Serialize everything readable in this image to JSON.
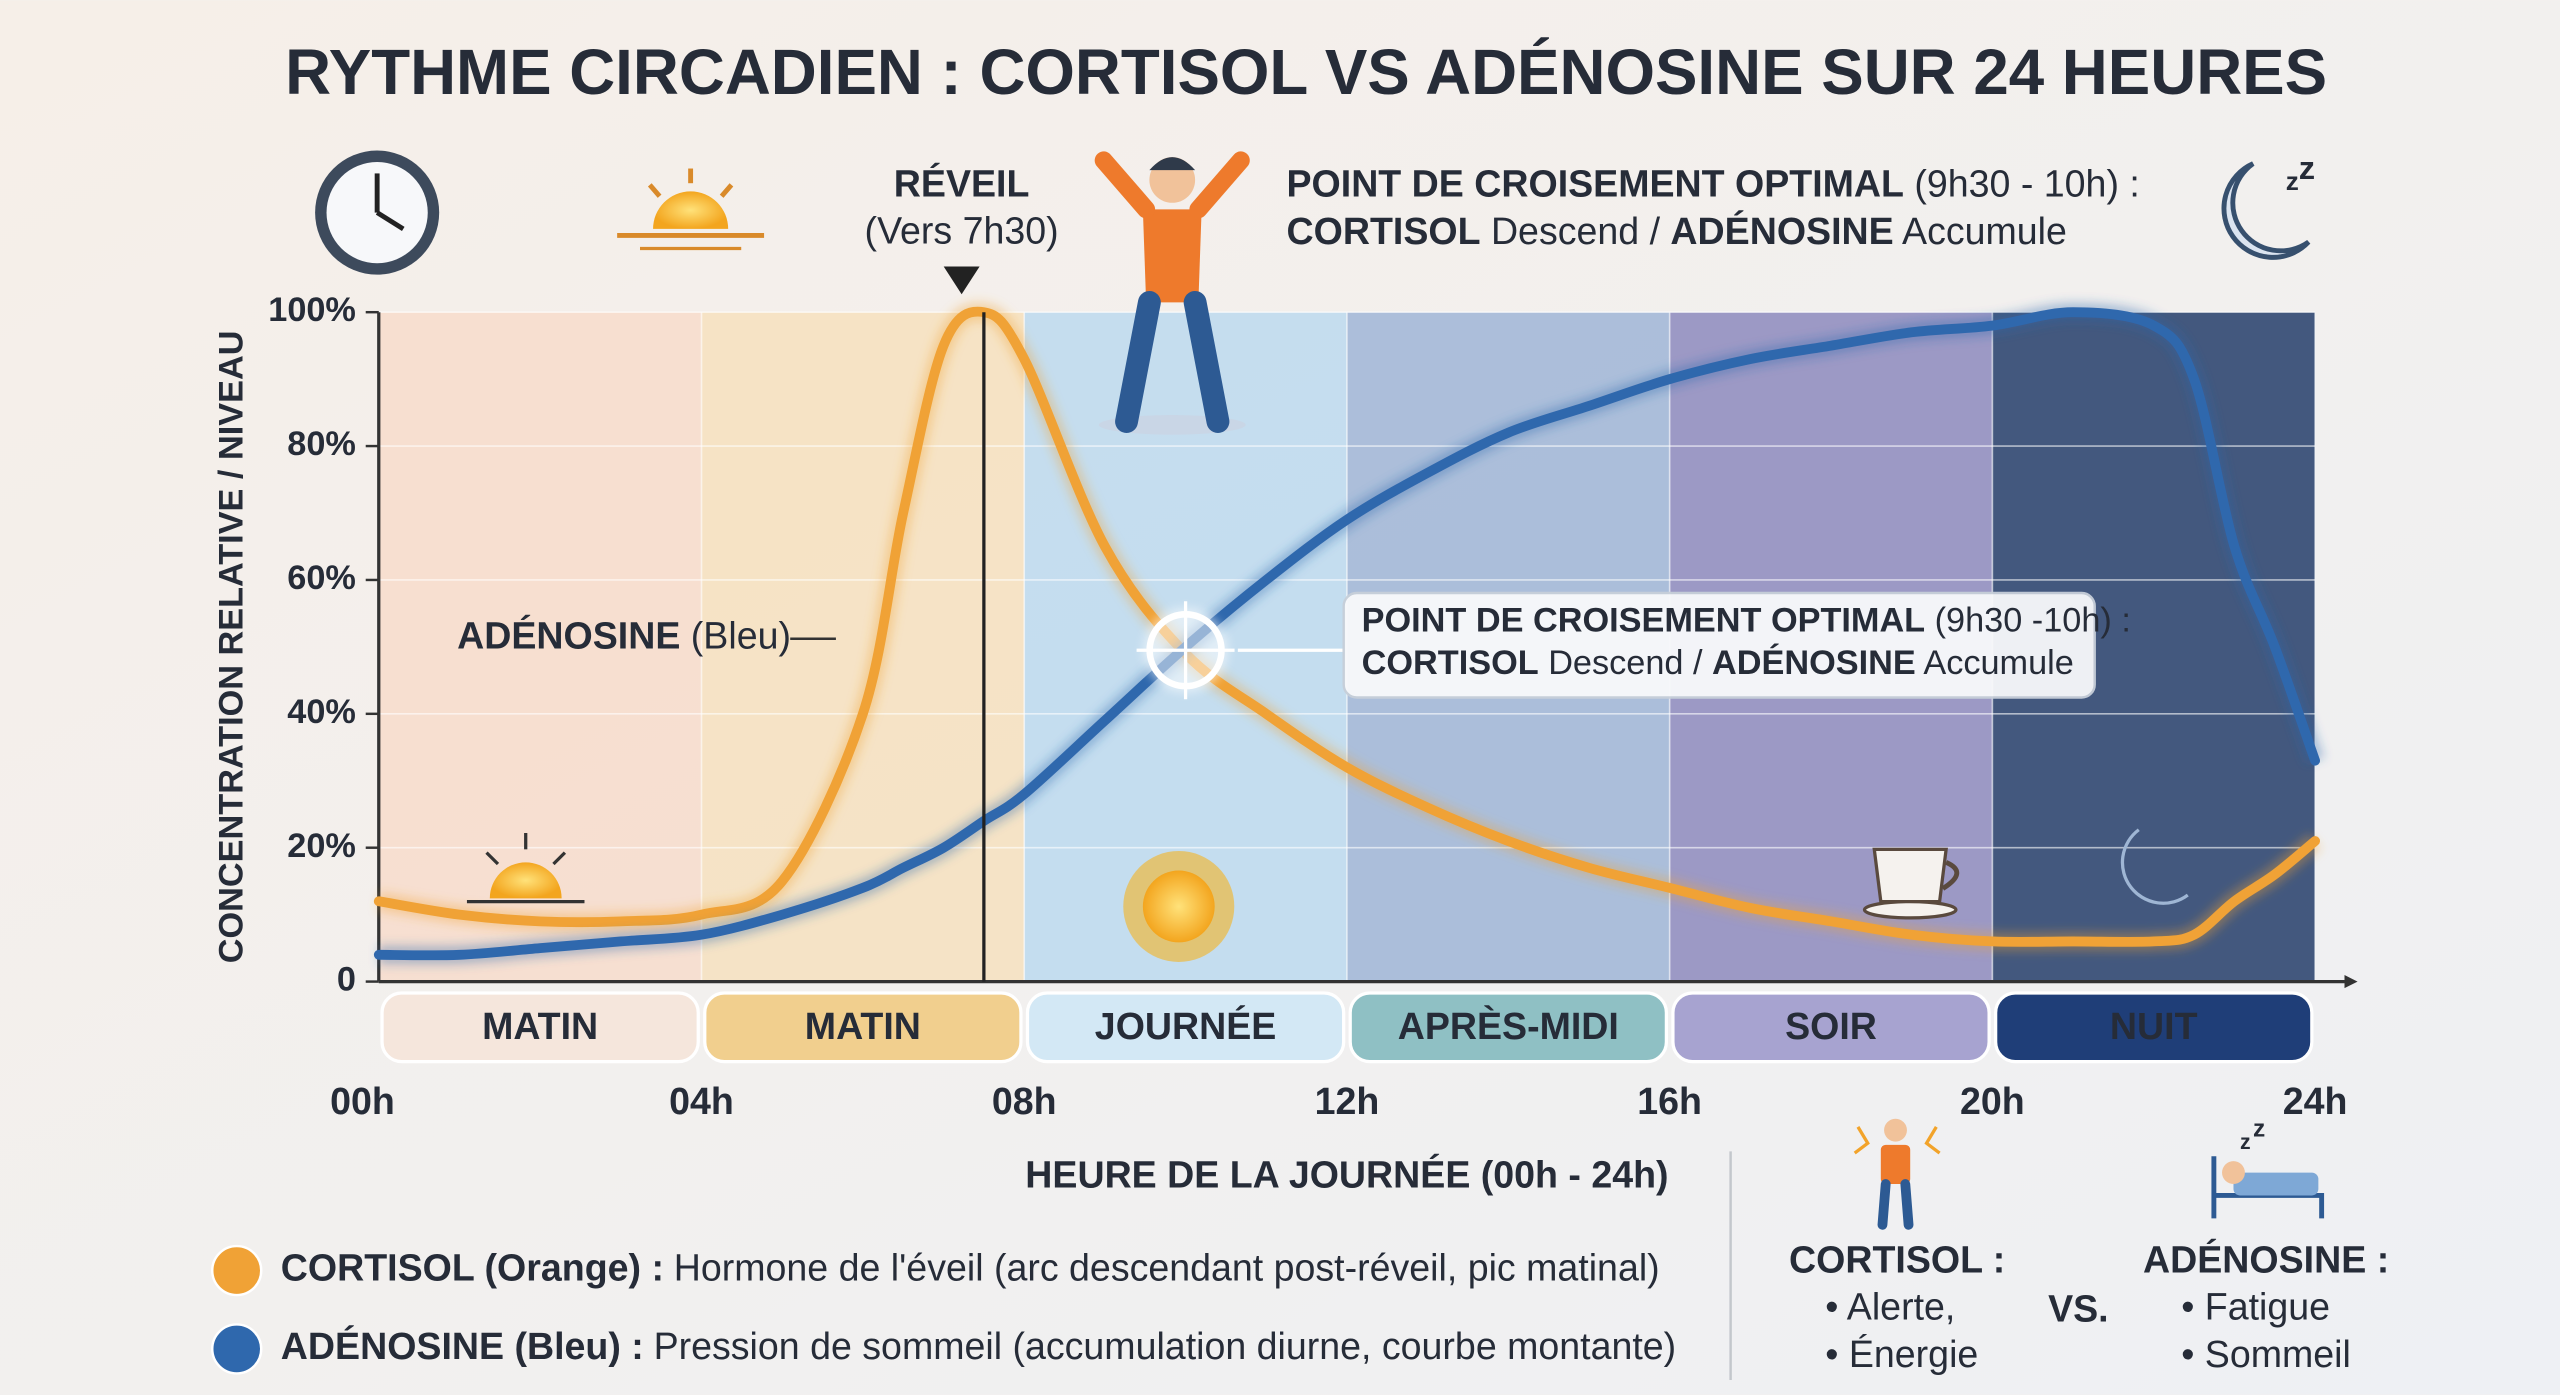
{
  "chart_data": {
    "type": "line",
    "title": "RYTHME CIRCADIEN : CORTISOL VS ADÉNOSINE SUR 24 HEURES",
    "x_label": "HEURE DE LA JOURNÉE (00h - 24h)",
    "y_label": "CONCENTRATION RELATIVE / NIVEAU",
    "x": [
      0,
      1,
      2,
      3,
      4,
      5,
      6,
      6.5,
      7,
      7.5,
      8,
      9,
      10,
      11,
      12,
      13,
      14,
      15,
      16,
      17,
      18,
      19,
      20,
      21,
      22,
      22.5,
      23,
      23.5,
      24
    ],
    "xlim": [
      0,
      24
    ],
    "xticks": [
      {
        "value": 0,
        "label": "00h"
      },
      {
        "value": 4,
        "label": "04h"
      },
      {
        "value": 8,
        "label": "08h"
      },
      {
        "value": 12,
        "label": "12h"
      },
      {
        "value": 16,
        "label": "16h"
      },
      {
        "value": 20,
        "label": "20h"
      },
      {
        "value": 24,
        "label": "24h"
      }
    ],
    "ylim": [
      0,
      100
    ],
    "yticks": [
      0,
      {
        "value": 20,
        "label": "20%"
      },
      {
        "value": 40,
        "label": "40%"
      },
      {
        "value": 60,
        "label": "60%"
      },
      {
        "value": 80,
        "label": "80%"
      },
      {
        "value": 100,
        "label": "100%"
      }
    ],
    "grid": true,
    "periods": [
      "MATIN",
      "MATIN",
      "JOURNÉE",
      "APRÈS-MIDI",
      "SOIR",
      "NUIT"
    ],
    "series": [
      {
        "name": "CORTISOL (Orange) :",
        "description": "Hormone de l'éveil (arc descendant post-réveil, pic matinal)",
        "color": "#f0a236",
        "values": [
          12,
          10,
          9,
          9,
          10,
          15,
          40,
          70,
          95,
          100,
          93,
          65,
          49,
          40,
          32,
          26,
          21,
          17,
          14,
          11,
          9,
          7,
          6,
          6,
          6,
          7,
          12,
          16,
          21
        ]
      },
      {
        "name": "ADÉNOSINE (Bleu) :",
        "description": "Pression de sommeil (accumulation diurne, courbe montante)",
        "color": "#2f68ad",
        "values": [
          4,
          4,
          5,
          6,
          7,
          10,
          14,
          17,
          20,
          24,
          28,
          39,
          50,
          60,
          69,
          76,
          82,
          86,
          90,
          93,
          95,
          97,
          98,
          100,
          98,
          90,
          65,
          50,
          33
        ]
      }
    ],
    "annotations": {
      "wake": [
        "RÉVEIL",
        "(Vers 7h30)"
      ],
      "crossing_top": [
        [
          "POINT DE CROISEMENT OPTIMAL",
          " (9h30 - 10h) :"
        ],
        [
          "CORTISOL",
          " Descend / ",
          "ADÉNOSINE",
          " Accumule"
        ]
      ],
      "crossing_box": [
        [
          "POINT DE CROISEMENT OPTIMAL",
          " (9h30 -10h) :"
        ],
        [
          "CORTISOL",
          " Descend / ",
          "ADÉNOSINE",
          " Accumule"
        ]
      ],
      "adenosine_label": [
        "ADÉNOSINE",
        " (Bleu)"
      ]
    },
    "comparison": {
      "cortisol": {
        "title": "CORTISOL :",
        "items": [
          "• Alerte,",
          "• Énergie"
        ]
      },
      "vs": "VS.",
      "adenosine": {
        "title": "ADÉNOSINE :",
        "items": [
          "• Fatigue",
          "• Sommeil"
        ]
      }
    }
  }
}
